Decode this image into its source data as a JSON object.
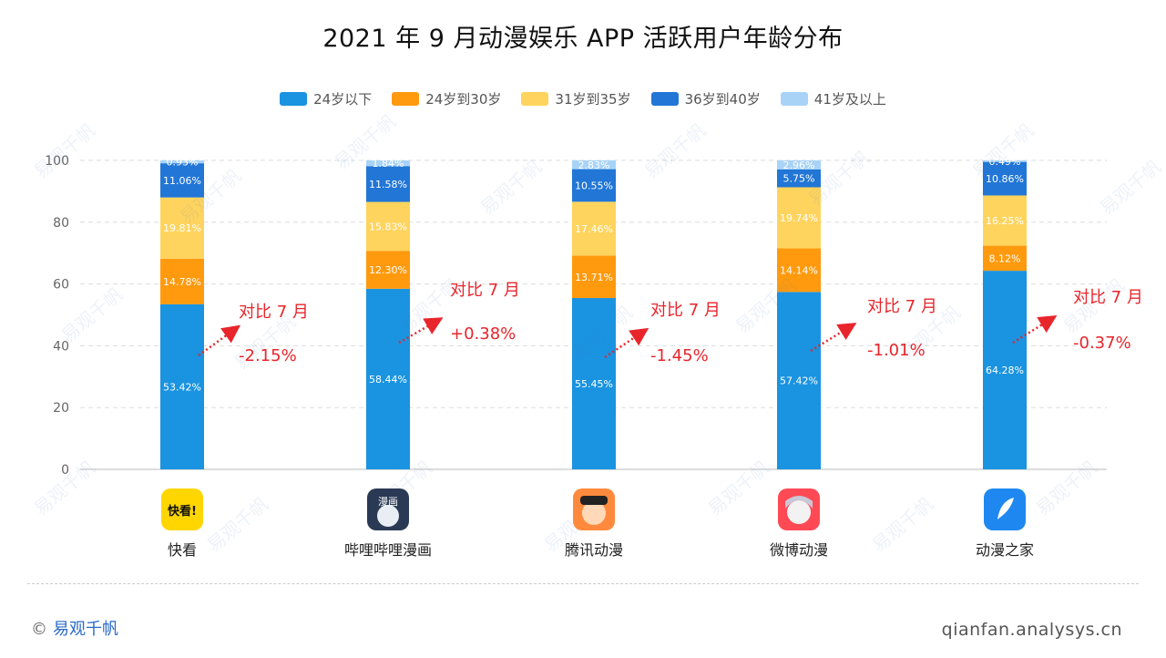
{
  "title": "2021 年 9 月动漫娱乐 APP 活跃用户年龄分布",
  "legend": [
    {
      "label": "24岁以下",
      "color": "#1a93e0"
    },
    {
      "label": "24岁到30岁",
      "color": "#ff9a0e"
    },
    {
      "label": "31岁到35岁",
      "color": "#ffd45e"
    },
    {
      "label": "36岁到40岁",
      "color": "#2176d6"
    },
    {
      "label": "41岁及以上",
      "color": "#a8d3f7"
    }
  ],
  "apps": [
    {
      "name": "快看",
      "icon": "kuaikan-icon",
      "icon_text": "快看!",
      "comparison_label": "对比 7 月",
      "comparison_value": "-2.15%"
    },
    {
      "name": "哔哩哔哩漫画",
      "icon": "bilibili-comics-icon",
      "icon_text": "漫画",
      "comparison_label": "对比 7 月",
      "comparison_value": "+0.38%"
    },
    {
      "name": "腾讯动漫",
      "icon": "tencent-comics-icon",
      "icon_text": "",
      "comparison_label": "对比 7 月",
      "comparison_value": "-1.45%"
    },
    {
      "name": "微博动漫",
      "icon": "weibo-comics-icon",
      "icon_text": "",
      "comparison_label": "对比 7 月",
      "comparison_value": "-1.01%"
    },
    {
      "name": "动漫之家",
      "icon": "dmzj-icon",
      "icon_text": "",
      "comparison_label": "对比 7 月",
      "comparison_value": "-0.37%"
    }
  ],
  "chart_data": {
    "type": "bar",
    "stacked": true,
    "categories": [
      "快看",
      "哔哩哔哩漫画",
      "腾讯动漫",
      "微博动漫",
      "动漫之家"
    ],
    "series": [
      {
        "name": "24岁以下",
        "color": "#1a93e0",
        "values": [
          53.42,
          58.44,
          55.45,
          57.42,
          64.28
        ],
        "labels": [
          "53.42%",
          "58.44%",
          "55.45%",
          "57.42%",
          "64.28%"
        ]
      },
      {
        "name": "24岁到30岁",
        "color": "#ff9a0e",
        "values": [
          14.78,
          12.3,
          13.71,
          14.14,
          8.12
        ],
        "labels": [
          "14.78%",
          "12.30%",
          "13.71%",
          "14.14%",
          "8.12%"
        ]
      },
      {
        "name": "31岁到35岁",
        "color": "#ffd45e",
        "values": [
          19.81,
          15.83,
          17.46,
          19.74,
          16.25
        ],
        "labels": [
          "19.81%",
          "15.83%",
          "17.46%",
          "19.74%",
          "16.25%"
        ]
      },
      {
        "name": "36岁到40岁",
        "color": "#2176d6",
        "values": [
          11.06,
          11.58,
          10.55,
          5.75,
          10.86
        ],
        "labels": [
          "11.06%",
          "11.58%",
          "10.55%",
          "5.75%",
          "10.86%"
        ]
      },
      {
        "name": "41岁及以上",
        "color": "#a8d3f7",
        "values": [
          0.93,
          1.84,
          2.83,
          2.96,
          0.49
        ],
        "labels": [
          "0.93%",
          "1.84%",
          "2.83%",
          "2.96%",
          "0.49%"
        ]
      }
    ],
    "ylim": [
      0,
      100
    ],
    "yticks": [
      0,
      20,
      40,
      60,
      80,
      100
    ],
    "grid": true,
    "legend_position": "top"
  },
  "footer": {
    "copyright_symbol": "©",
    "brand": "易观千帆",
    "url": "qianfan.analysys.cn"
  },
  "watermark": {
    "text": "易观千帆",
    "subtext": "Qianfan.analysys.cn"
  }
}
